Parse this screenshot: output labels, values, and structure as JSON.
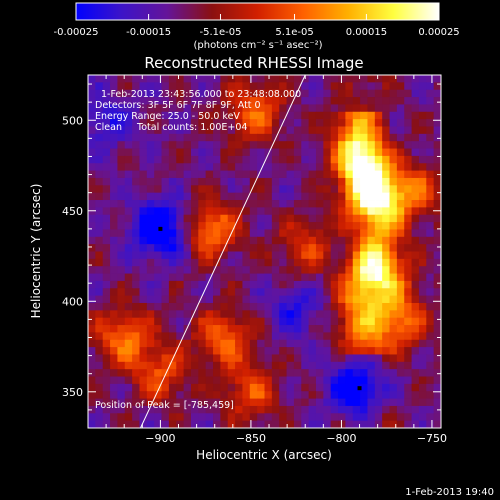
{
  "colorbar": {
    "ticks": [
      "-0.00025",
      "-0.00015",
      "-5.1e-05",
      "5.1e-05",
      "0.00015",
      "0.00025"
    ],
    "tick_values": [
      -0.00025,
      -0.00015,
      -5.1e-05,
      5.1e-05,
      0.00015,
      0.00025
    ],
    "range": [
      -0.00025,
      0.00025
    ],
    "unit_text": "(photons cm⁻² s⁻¹ asec⁻²)",
    "colors": [
      "#0000ff",
      "#3c14c8",
      "#64149a",
      "#8b1010",
      "#d22000",
      "#ff6000",
      "#ffb000",
      "#ffff40",
      "#ffffff"
    ]
  },
  "chart_data": {
    "type": "heatmap",
    "title": "Reconstructed RHESSI Image",
    "xlabel": "Heliocentric X (arcsec)",
    "ylabel": "Heliocentric Y (arcsec)",
    "xlim": [
      -940,
      -745
    ],
    "ylim": [
      330,
      525
    ],
    "x_ticks": [
      -900,
      -850,
      -800,
      -750
    ],
    "y_ticks": [
      350,
      400,
      450,
      500
    ],
    "x_tick_labels": [
      "−900",
      "−850",
      "−800",
      "−750"
    ],
    "y_tick_labels": [
      "350",
      "400",
      "450",
      "500"
    ],
    "annotations": [
      "1-Feb-2013 23:43:56.000 to 23:48:08.000",
      "Detectors: 3F 5F 6F 7F 8F 9F, Att 0",
      "Energy Range: 25.0 - 50.0 keV",
      "Clean     Total counts: 1.00E+04"
    ],
    "peak_label": "Position of Peak = [-785,459]",
    "peak": [
      -785,
      459
    ],
    "hotspots": [
      {
        "x": -872,
        "y": 440,
        "amp": 0.8
      },
      {
        "x": -848,
        "y": 505,
        "amp": 0.7
      },
      {
        "x": -785,
        "y": 459,
        "amp": 1.0
      },
      {
        "x": -778,
        "y": 415,
        "amp": 0.9
      },
      {
        "x": -770,
        "y": 390,
        "amp": 0.85
      },
      {
        "x": -790,
        "y": 480,
        "amp": 0.8
      },
      {
        "x": -920,
        "y": 380,
        "amp": 0.75
      },
      {
        "x": -865,
        "y": 380,
        "amp": 0.7
      },
      {
        "x": -850,
        "y": 350,
        "amp": 0.6
      },
      {
        "x": -760,
        "y": 460,
        "amp": 0.7
      },
      {
        "x": -900,
        "y": 360,
        "amp": 0.6
      },
      {
        "x": -820,
        "y": 430,
        "amp": 0.5
      }
    ],
    "lows": [
      {
        "x": -900,
        "y": 440,
        "amp": -0.9
      },
      {
        "x": -790,
        "y": 352,
        "amp": -0.9
      },
      {
        "x": -825,
        "y": 395,
        "amp": -0.4
      },
      {
        "x": -930,
        "y": 500,
        "amp": -0.4
      }
    ],
    "limb_line": [
      [
        -911,
        330
      ],
      [
        -820,
        525
      ]
    ]
  },
  "footer": {
    "timestamp": "1-Feb-2013 19:40"
  }
}
